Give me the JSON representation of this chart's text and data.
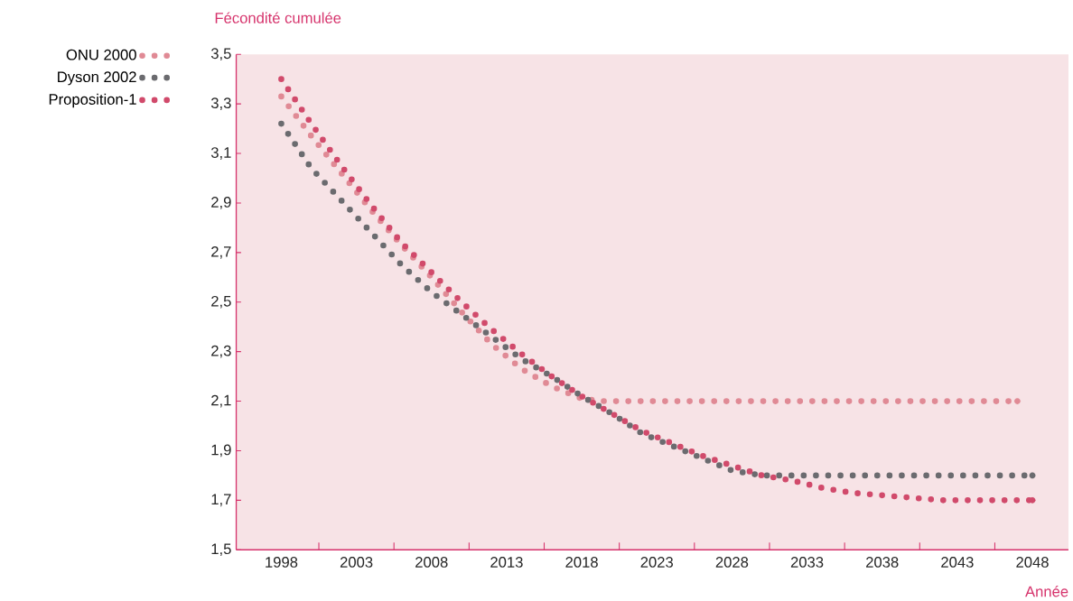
{
  "chart_data": {
    "type": "line",
    "xlabel": "Année",
    "ylabel": "Fécondité cumulée",
    "xlim": [
      1995,
      2050.4
    ],
    "ylim": [
      1.5,
      3.5
    ],
    "xticks": [
      1998,
      {
        "value": 2000.5,
        "label": null
      },
      2003,
      {
        "value": 2005.5,
        "label": null
      },
      2008,
      {
        "value": 2010.5,
        "label": null
      },
      2013,
      {
        "value": 2015.5,
        "label": null
      },
      2018,
      {
        "value": 2020.5,
        "label": null
      },
      2023,
      {
        "value": 2025.5,
        "label": null
      },
      2028,
      {
        "value": 2030.5,
        "label": null
      },
      2033,
      {
        "value": 2035.5,
        "label": null
      },
      2038,
      {
        "value": 2040.5,
        "label": null
      },
      2043,
      {
        "value": 2045.5,
        "label": null
      },
      2048
    ],
    "yticks": [
      {
        "value": 1.5,
        "label": "1,5"
      },
      {
        "value": 1.7,
        "label": "1,7"
      },
      {
        "value": 1.9,
        "label": "1,9"
      },
      {
        "value": 2.1,
        "label": "2,1"
      },
      {
        "value": 2.3,
        "label": "2,3"
      },
      {
        "value": 2.5,
        "label": "2,5"
      },
      {
        "value": 2.7,
        "label": "2,7"
      },
      {
        "value": 2.9,
        "label": "2,9"
      },
      {
        "value": 3.1,
        "label": "3,1"
      },
      {
        "value": 3.3,
        "label": "3,3"
      },
      {
        "value": 3.5,
        "label": "3,5"
      }
    ],
    "legend": "top left",
    "line_style": "dotted",
    "grid": false,
    "series": [
      {
        "name": "ONU 2000",
        "color": "#e08a95",
        "x": [
          1998,
          2000,
          2002,
          2004,
          2006,
          2008,
          2010,
          2012,
          2014,
          2016,
          2018,
          2019.5,
          2030,
          2040,
          2047
        ],
        "values": [
          3.33,
          3.17,
          3.02,
          2.87,
          2.73,
          2.6,
          2.46,
          2.33,
          2.23,
          2.16,
          2.11,
          2.1,
          2.1,
          2.1,
          2.1
        ]
      },
      {
        "name": "Dyson 2002",
        "color": "#6b6b6f",
        "x": [
          1998,
          2000,
          2002,
          2004,
          2006,
          2008,
          2010,
          2012,
          2014,
          2016,
          2018,
          2020,
          2022,
          2024,
          2026,
          2028,
          2030,
          2035,
          2040,
          2045,
          2048
        ],
        "values": [
          3.22,
          3.04,
          2.91,
          2.78,
          2.65,
          2.54,
          2.45,
          2.36,
          2.27,
          2.2,
          2.12,
          2.05,
          1.97,
          1.92,
          1.87,
          1.82,
          1.8,
          1.8,
          1.8,
          1.8,
          1.8
        ]
      },
      {
        "name": "Proposition-1",
        "color": "#d14a6b",
        "x": [
          1998,
          2000,
          2002,
          2004,
          2006,
          2008,
          2010,
          2012,
          2014,
          2016,
          2018,
          2020,
          2022,
          2024,
          2026,
          2028,
          2030,
          2032,
          2034,
          2036,
          2038,
          2040,
          2042,
          2045,
          2048
        ],
        "values": [
          3.4,
          3.22,
          3.05,
          2.89,
          2.74,
          2.62,
          2.5,
          2.39,
          2.29,
          2.2,
          2.12,
          2.05,
          1.98,
          1.93,
          1.88,
          1.84,
          1.8,
          1.78,
          1.75,
          1.73,
          1.72,
          1.71,
          1.7,
          1.7,
          1.7
        ]
      }
    ]
  }
}
